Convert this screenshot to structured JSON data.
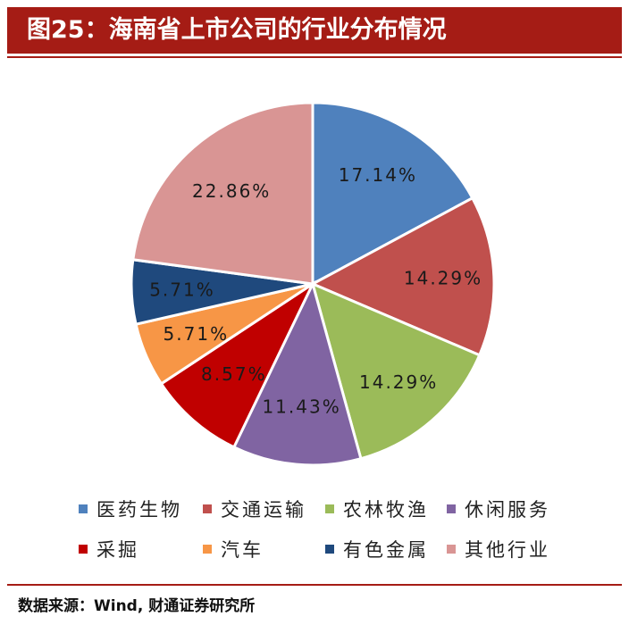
{
  "figure": {
    "title": "图25：海南省上市公司的行业分布情况",
    "source": "数据来源：Wind, 财通证券研究所"
  },
  "chart_data": {
    "type": "pie",
    "categories": [
      "医药生物",
      "交通运输",
      "农林牧渔",
      "休闲服务",
      "采掘",
      "汽车",
      "有色金属",
      "其他行业"
    ],
    "values": [
      17.14,
      14.29,
      14.29,
      11.43,
      8.57,
      5.71,
      5.71,
      22.86
    ],
    "labels": [
      "17.14%",
      "14.29%",
      "14.29%",
      "11.43%",
      "8.57%",
      "5.71%",
      "5.71%",
      "22.86%"
    ],
    "colors": [
      "#4f81bd",
      "#c0504d",
      "#9bbb59",
      "#8064a2",
      "#c00000",
      "#f79646",
      "#1f497d",
      "#d99594"
    ],
    "legend_position": "bottom",
    "start": "12 o'clock",
    "direction": "clockwise"
  }
}
